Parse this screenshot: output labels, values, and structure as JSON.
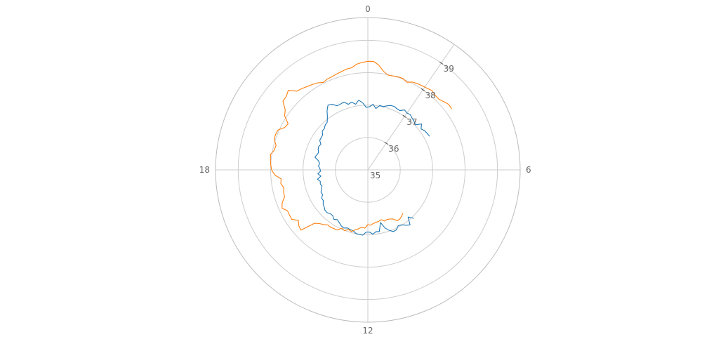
{
  "chart_data": {
    "type": "line",
    "coordinate_system": "polar",
    "angular_axis": {
      "period": 24,
      "direction": "clockwise",
      "rotation": "0 at top",
      "tick_labels": [
        "0",
        "6",
        "12",
        "18"
      ],
      "grid": true
    },
    "radial_axis": {
      "range": [
        35,
        39.7
      ],
      "tick_values": [
        35,
        36,
        37,
        38,
        39
      ],
      "tick_labels": [
        "35",
        "36",
        "37",
        "38",
        "39"
      ],
      "tick_angle": 2.3,
      "grid": true
    },
    "legend": "none",
    "series": [
      {
        "color": "#1f77b4",
        "theta": [
          4.1,
          3.9,
          3.7,
          3.5,
          3.3,
          3.1,
          2.9,
          2.7,
          2.5,
          2.3,
          2.1,
          1.9,
          1.7,
          1.5,
          1.3,
          1.1,
          0.9,
          0.7,
          0.5,
          0.3,
          0.1,
          23.9,
          23.7,
          23.5,
          23.3,
          23.1,
          22.9,
          22.7,
          22.5,
          22.3,
          22.1,
          21.9,
          21.7,
          21.5,
          21.3,
          21.1,
          20.9,
          20.7,
          20.5,
          20.3,
          20.1,
          19.9,
          19.7,
          19.5,
          19.3,
          19.1,
          18.9,
          18.7,
          18.5,
          18.3,
          18.1,
          17.9,
          17.7,
          17.5,
          17.3,
          17.1,
          16.9,
          16.7,
          16.5,
          16.3,
          16.1,
          15.9,
          15.7,
          15.5,
          15.3,
          15.1,
          14.9,
          14.7,
          14.5,
          14.3,
          14.1,
          13.9,
          13.7,
          13.5,
          13.3,
          13.1,
          12.9,
          12.7,
          12.5,
          12.3,
          12.1,
          11.9,
          11.7,
          11.5,
          11.3,
          11.1,
          10.9,
          10.7,
          10.5,
          10.3,
          10.1,
          9.9,
          9.7,
          9.5,
          9.3,
          9.1
        ],
        "r": [
          37.17,
          37.15,
          37.13,
          37.07,
          37.18,
          37.02,
          37.07,
          37.1,
          37.15,
          37.13,
          37.17,
          37.08,
          37.09,
          37.12,
          37.11,
          37.06,
          37.01,
          37.02,
          36.91,
          37.03,
          36.95,
          36.93,
          37.08,
          37.17,
          37.06,
          37.15,
          37.11,
          37.22,
          37.2,
          37.19,
          37.3,
          37.35,
          37.22,
          37.05,
          36.93,
          36.91,
          36.85,
          36.85,
          36.76,
          36.75,
          36.74,
          36.65,
          36.68,
          36.66,
          36.61,
          36.64,
          36.68,
          36.55,
          36.5,
          36.53,
          36.48,
          36.46,
          36.55,
          36.46,
          36.58,
          36.51,
          36.53,
          36.5,
          36.55,
          36.6,
          36.59,
          36.67,
          36.67,
          36.74,
          36.77,
          36.82,
          36.82,
          36.78,
          36.78,
          36.85,
          36.8,
          36.85,
          36.91,
          36.94,
          36.9,
          36.92,
          36.93,
          37.0,
          37.01,
          37.02,
          36.92,
          36.92,
          36.99,
          36.92,
          36.94,
          36.67,
          36.87,
          36.98,
          37.06,
          37.05,
          36.96,
          36.99,
          37.07,
          37.14,
          36.91,
          37.06
        ]
      },
      {
        "color": "#ff7f0e",
        "theta": [
          3.6,
          3.4,
          3.2,
          3.0,
          2.8,
          2.6,
          2.4,
          2.2,
          2.0,
          1.8,
          1.6,
          1.4,
          1.2,
          1.0,
          0.8,
          0.6,
          0.4,
          0.2,
          0.0,
          23.8,
          23.6,
          23.4,
          23.2,
          23.0,
          22.8,
          22.6,
          22.4,
          22.2,
          22.0,
          21.8,
          21.6,
          21.4,
          21.2,
          21.0,
          20.8,
          20.6,
          20.4,
          20.2,
          20.0,
          19.8,
          19.6,
          19.4,
          19.2,
          19.0,
          18.8,
          18.6,
          18.4,
          18.2,
          18.0,
          17.8,
          17.6,
          17.4,
          17.2,
          17.0,
          16.8,
          16.6,
          16.4,
          16.2,
          16.0,
          15.8,
          15.6,
          15.4,
          15.2,
          15.0,
          14.8,
          14.6,
          14.4,
          14.2,
          14.0,
          13.8,
          13.6,
          13.4,
          13.2,
          13.0,
          12.8,
          12.6,
          12.4,
          12.2,
          12.0,
          11.8,
          11.6,
          11.4,
          11.2,
          11.0,
          10.8,
          10.6,
          10.4,
          10.2,
          10.0,
          9.8,
          9.6,
          9.4
        ],
        "r": [
          38.2,
          38.21,
          38.15,
          38.09,
          38.1,
          38.15,
          38.11,
          38.09,
          38.07,
          38.04,
          37.96,
          38.02,
          38.02,
          38.0,
          37.99,
          38.08,
          38.25,
          38.35,
          38.35,
          38.32,
          38.28,
          38.19,
          38.18,
          38.14,
          38.11,
          38.08,
          38.07,
          38.03,
          38.1,
          38.14,
          38.18,
          38.23,
          38.27,
          38.47,
          38.39,
          38.37,
          38.15,
          38.06,
          37.84,
          37.88,
          38.03,
          38.05,
          38.04,
          37.93,
          37.95,
          38.04,
          38.02,
          38.0,
          37.97,
          37.88,
          37.69,
          37.72,
          37.65,
          37.69,
          37.7,
          37.83,
          37.9,
          37.78,
          37.79,
          37.8,
          37.65,
          37.74,
          37.78,
          37.33,
          37.23,
          37.17,
          37.1,
          37.11,
          37.09,
          37.08,
          36.97,
          37.01,
          36.93,
          36.97,
          36.89,
          36.84,
          36.78,
          36.8,
          36.69,
          36.71,
          36.66,
          36.64,
          36.62,
          36.59,
          36.66,
          36.64,
          36.66,
          36.7,
          36.81,
          36.81,
          36.77,
          36.72
        ]
      }
    ]
  }
}
